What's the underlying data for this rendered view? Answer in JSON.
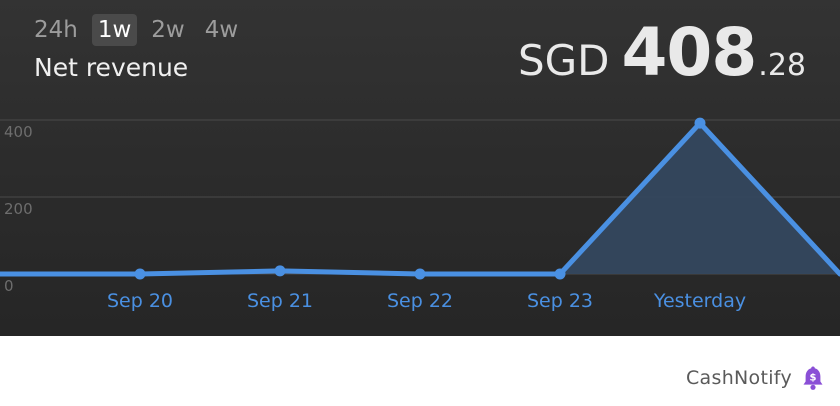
{
  "ranges": [
    {
      "label": "24h",
      "active": false
    },
    {
      "label": "1w",
      "active": true
    },
    {
      "label": "2w",
      "active": false
    },
    {
      "label": "4w",
      "active": false
    }
  ],
  "metric_label": "Net revenue",
  "amount": {
    "currency": "SGD",
    "integer": "408",
    "decimal": ".28"
  },
  "brand": {
    "name": "CashNotify",
    "icon": "bell-dollar-icon"
  },
  "colors": {
    "line": "#4a90e2",
    "fill": "#34475e",
    "label": "#4a90e2",
    "grid": "#4a4a4a",
    "tick": "#6d6d6d",
    "bell": "#8a4fd6"
  },
  "chart_data": {
    "type": "area",
    "categories": [
      "",
      "Sep 20",
      "Sep 21",
      "Sep 22",
      "Sep 23",
      "Yesterday",
      ""
    ],
    "series": [
      {
        "values": [
          0,
          0,
          8,
          0,
          0,
          392,
          0
        ]
      }
    ],
    "yticks": [
      "400",
      "200",
      "0"
    ],
    "ylim": [
      0,
      400
    ],
    "fill_from_category": 4,
    "grid": true
  }
}
